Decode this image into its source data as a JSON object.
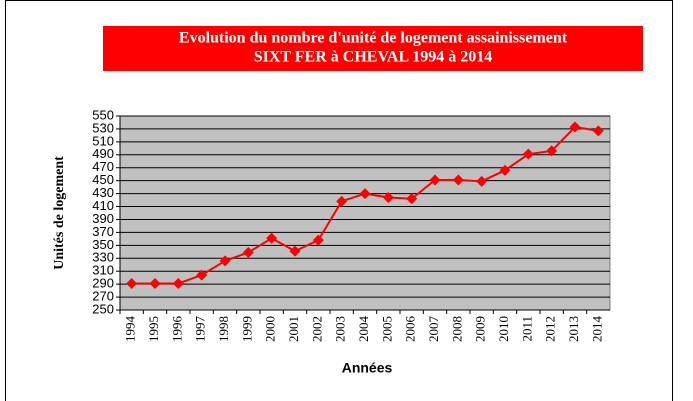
{
  "chart_data": {
    "type": "line",
    "title": [
      "Evolution du nombre d'unité de logement assainissement",
      "SIXT FER à CHEVAL  1994 à 2014"
    ],
    "x_label": "Années",
    "y_label": "Unités de logement",
    "categories": [
      "1994",
      "1995",
      "1996",
      "1997",
      "1998",
      "1999",
      "2000",
      "2001",
      "2002",
      "2003",
      "2004",
      "2005",
      "2006",
      "2007",
      "2008",
      "2009",
      "2010",
      "2011",
      "2012",
      "2013",
      "2014"
    ],
    "values": [
      291,
      291,
      291,
      304,
      326,
      339,
      361,
      341,
      358,
      418,
      430,
      424,
      422,
      451,
      451,
      449,
      466,
      491,
      496,
      533,
      527
    ],
    "color": "#ff0000",
    "ylim": [
      250,
      550
    ],
    "yticks": [
      250,
      270,
      290,
      310,
      330,
      350,
      370,
      390,
      410,
      430,
      450,
      470,
      490,
      510,
      530,
      550
    ],
    "grid": true
  }
}
